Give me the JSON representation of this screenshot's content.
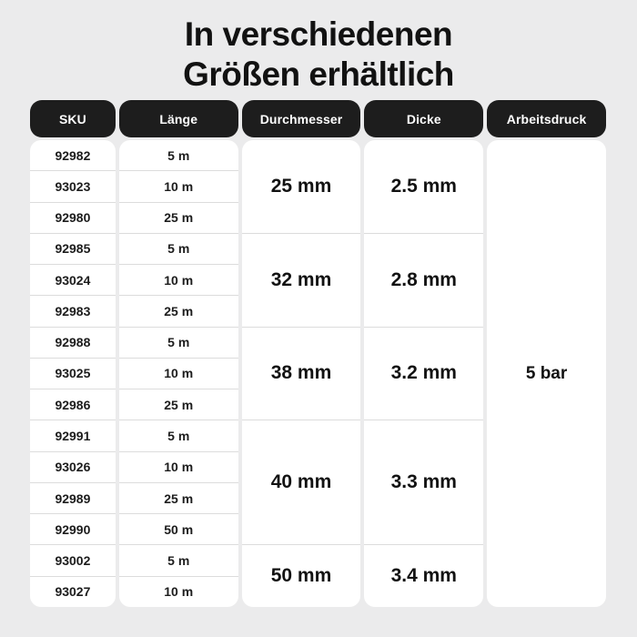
{
  "title": {
    "line1": "In verschiedenen",
    "line2": "Größen erhältlich"
  },
  "colors": {
    "background": "#ebebec",
    "cell_background": "#ffffff",
    "header_pill_background": "#1d1d1d",
    "header_pill_text": "#ffffff",
    "body_text": "#161616",
    "divider": "#dcdcdc"
  },
  "table": {
    "headers": {
      "sku": "SKU",
      "laenge": "Länge",
      "durchmesser": "Durchmesser",
      "dicke": "Dicke",
      "arbeitsdruck": "Arbeitsdruck"
    },
    "rows": [
      {
        "sku": "92982",
        "laenge": "5 m"
      },
      {
        "sku": "93023",
        "laenge": "10 m"
      },
      {
        "sku": "92980",
        "laenge": "25 m"
      },
      {
        "sku": "92985",
        "laenge": "5 m"
      },
      {
        "sku": "93024",
        "laenge": "10 m"
      },
      {
        "sku": "92983",
        "laenge": "25 m"
      },
      {
        "sku": "92988",
        "laenge": "5 m"
      },
      {
        "sku": "93025",
        "laenge": "10 m"
      },
      {
        "sku": "92986",
        "laenge": "25 m"
      },
      {
        "sku": "92991",
        "laenge": "5 m"
      },
      {
        "sku": "93026",
        "laenge": "10 m"
      },
      {
        "sku": "92989",
        "laenge": "25 m"
      },
      {
        "sku": "92990",
        "laenge": "50 m"
      },
      {
        "sku": "93002",
        "laenge": "5 m"
      },
      {
        "sku": "93027",
        "laenge": "10 m"
      }
    ],
    "groups": [
      {
        "durchmesser": "25 mm",
        "dicke": "2.5 mm",
        "row_span": 3
      },
      {
        "durchmesser": "32 mm",
        "dicke": "2.8 mm",
        "row_span": 3
      },
      {
        "durchmesser": "38 mm",
        "dicke": "3.2 mm",
        "row_span": 3
      },
      {
        "durchmesser": "40 mm",
        "dicke": "3.3 mm",
        "row_span": 4
      },
      {
        "durchmesser": "50 mm",
        "dicke": "3.4 mm",
        "row_span": 2
      }
    ],
    "arbeitsdruck": "5 bar"
  },
  "chart_data": {
    "type": "table",
    "title": "In verschiedenen Größen erhältlich",
    "columns": [
      "SKU",
      "Länge",
      "Durchmesser",
      "Dicke",
      "Arbeitsdruck"
    ],
    "rows": [
      [
        "92982",
        "5 m",
        "25 mm",
        "2.5 mm",
        "5 bar"
      ],
      [
        "93023",
        "10 m",
        "25 mm",
        "2.5 mm",
        "5 bar"
      ],
      [
        "92980",
        "25 m",
        "25 mm",
        "2.5 mm",
        "5 bar"
      ],
      [
        "92985",
        "5 m",
        "32 mm",
        "2.8 mm",
        "5 bar"
      ],
      [
        "93024",
        "10 m",
        "32 mm",
        "2.8 mm",
        "5 bar"
      ],
      [
        "92983",
        "25 m",
        "32 mm",
        "2.8 mm",
        "5 bar"
      ],
      [
        "92988",
        "5 m",
        "38 mm",
        "3.2 mm",
        "5 bar"
      ],
      [
        "93025",
        "10 m",
        "38 mm",
        "3.2 mm",
        "5 bar"
      ],
      [
        "92986",
        "25 m",
        "38 mm",
        "3.2 mm",
        "5 bar"
      ],
      [
        "92991",
        "5 m",
        "40 mm",
        "3.3 mm",
        "5 bar"
      ],
      [
        "93026",
        "10 m",
        "40 mm",
        "3.3 mm",
        "5 bar"
      ],
      [
        "92989",
        "25 m",
        "40 mm",
        "3.3 mm",
        "5 bar"
      ],
      [
        "92990",
        "50 m",
        "40 mm",
        "3.3 mm",
        "5 bar"
      ],
      [
        "93002",
        "5 m",
        "50 mm",
        "3.4 mm",
        "5 bar"
      ],
      [
        "93027",
        "10 m",
        "50 mm",
        "3.4 mm",
        "5 bar"
      ]
    ],
    "merged_columns": {
      "Durchmesser": [
        {
          "value": "25 mm",
          "rows": [
            0,
            1,
            2
          ]
        },
        {
          "value": "32 mm",
          "rows": [
            3,
            4,
            5
          ]
        },
        {
          "value": "38 mm",
          "rows": [
            6,
            7,
            8
          ]
        },
        {
          "value": "40 mm",
          "rows": [
            9,
            10,
            11,
            12
          ]
        },
        {
          "value": "50 mm",
          "rows": [
            13,
            14
          ]
        }
      ],
      "Dicke": [
        {
          "value": "2.5 mm",
          "rows": [
            0,
            1,
            2
          ]
        },
        {
          "value": "2.8 mm",
          "rows": [
            3,
            4,
            5
          ]
        },
        {
          "value": "3.2 mm",
          "rows": [
            6,
            7,
            8
          ]
        },
        {
          "value": "3.3 mm",
          "rows": [
            9,
            10,
            11,
            12
          ]
        },
        {
          "value": "3.4 mm",
          "rows": [
            13,
            14
          ]
        }
      ],
      "Arbeitsdruck": [
        {
          "value": "5 bar",
          "rows": [
            0,
            1,
            2,
            3,
            4,
            5,
            6,
            7,
            8,
            9,
            10,
            11,
            12,
            13,
            14
          ]
        }
      ]
    }
  }
}
